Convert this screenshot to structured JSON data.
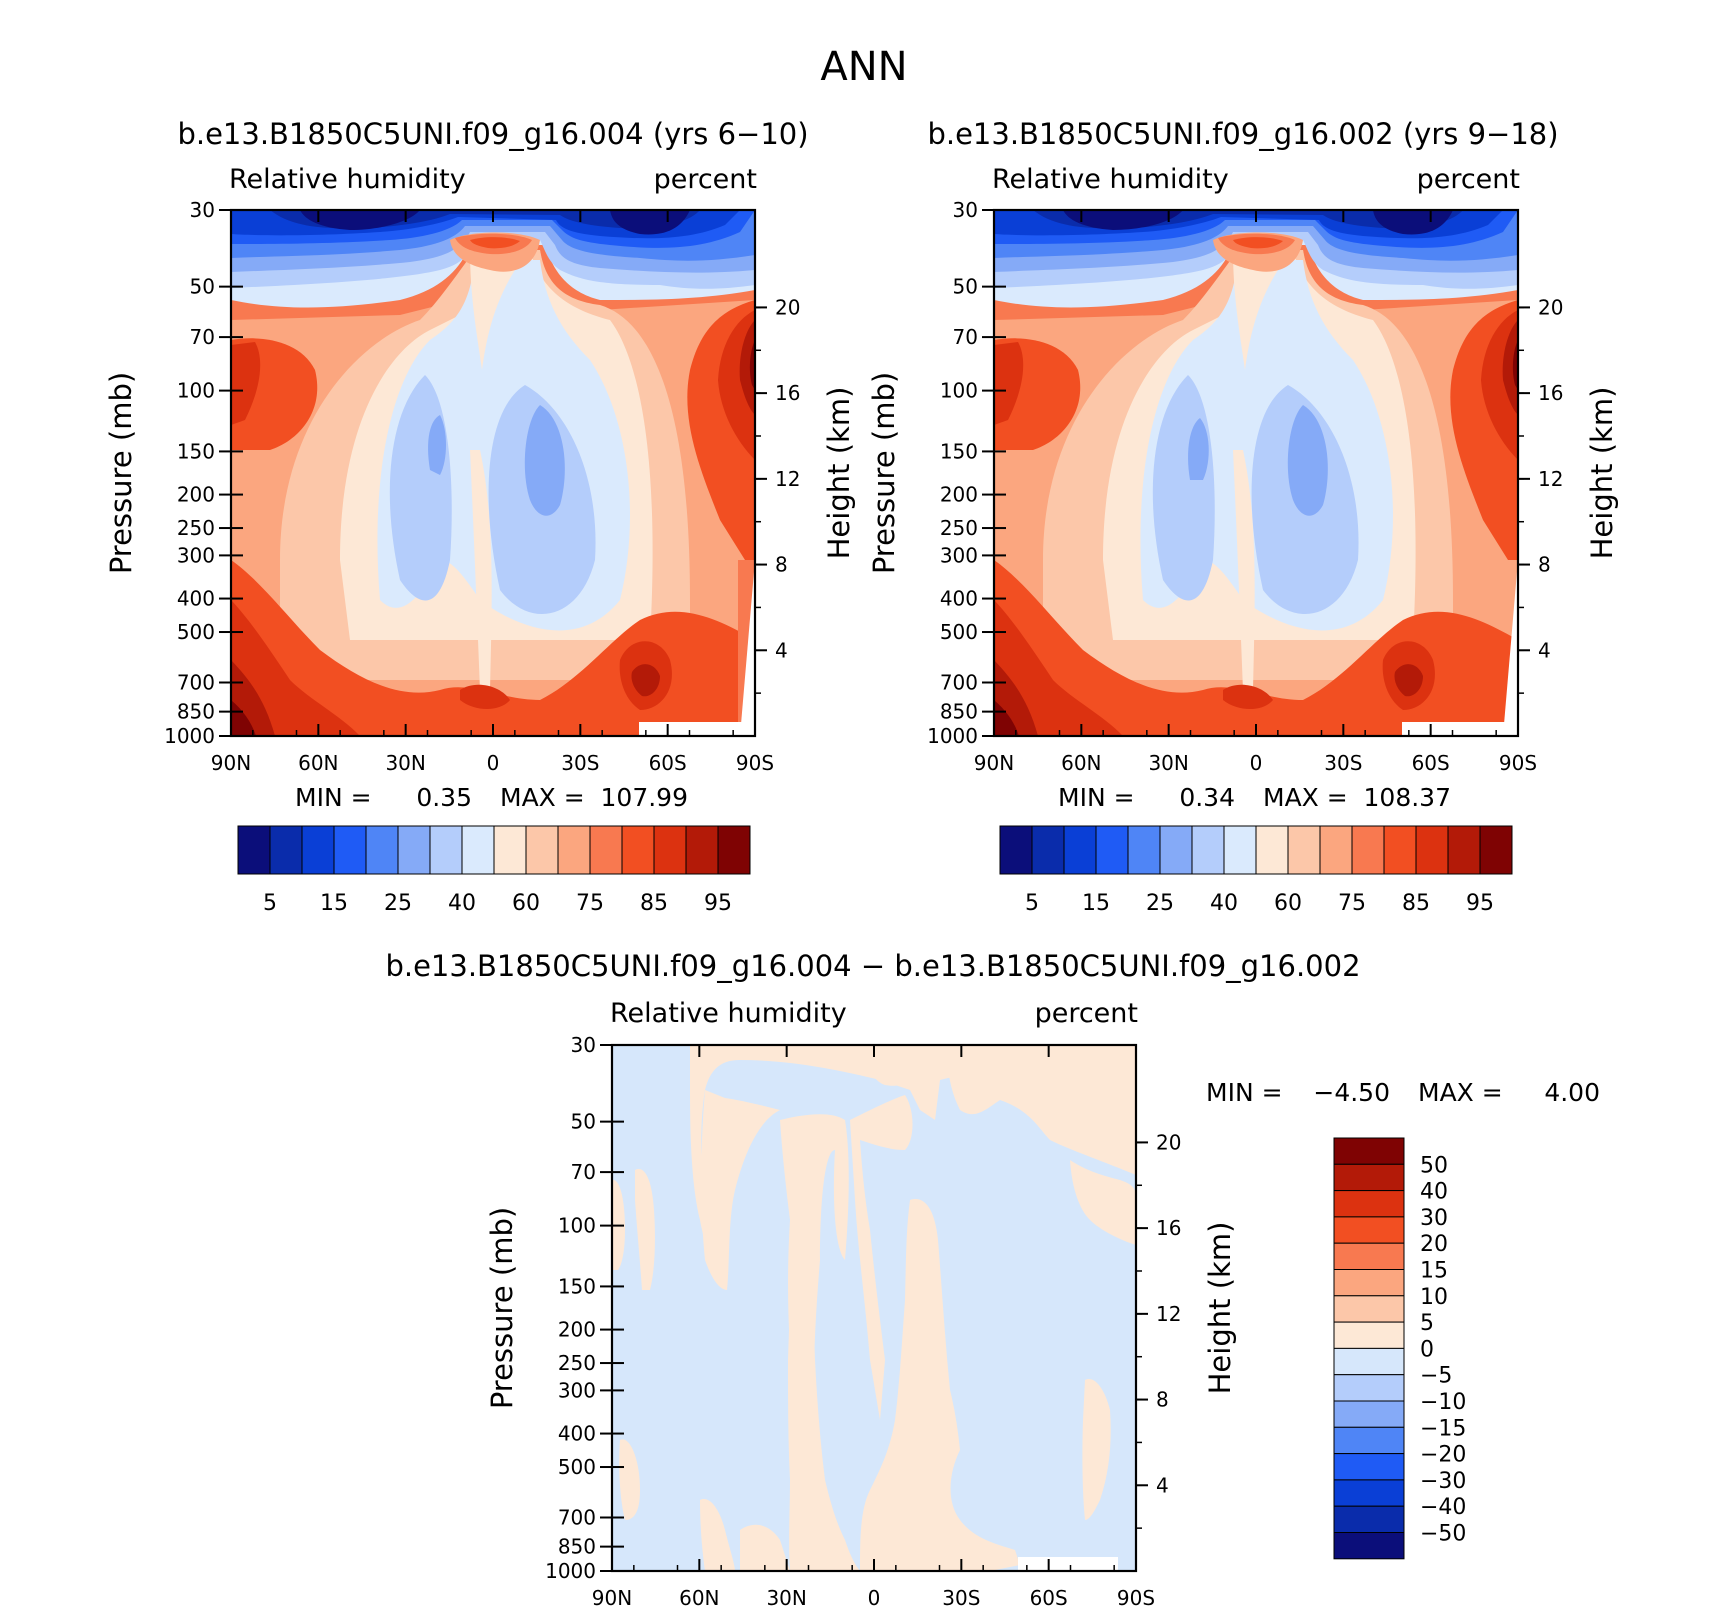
{
  "page": {
    "title": "ANN"
  },
  "chart_data": [
    {
      "type": "contour",
      "id": "p1",
      "title": "b.e13.B1850C5UNI.f09_g16.004 (yrs 6−10)",
      "left_label": "Relative humidity",
      "right_label": "percent",
      "ylabel": "Pressure (mb)",
      "ylabel_right": "Height (km)",
      "x_ticks": [
        "90N",
        "60N",
        "30N",
        "0",
        "30S",
        "60S",
        "90S"
      ],
      "y_ticks": [
        "30",
        "50",
        "70",
        "100",
        "150",
        "200",
        "250",
        "300",
        "400",
        "500",
        "700",
        "850",
        "1000"
      ],
      "height_ticks": [
        "20",
        "16",
        "12",
        "8",
        "4"
      ],
      "min_label": "MIN =",
      "min_value": "0.35",
      "max_label": "MAX =",
      "max_value": "107.99",
      "levels": [
        "5",
        "15",
        "25",
        "40",
        "60",
        "75",
        "85",
        "95"
      ]
    },
    {
      "type": "contour",
      "id": "p2",
      "title": "b.e13.B1850C5UNI.f09_g16.002 (yrs 9−18)",
      "left_label": "Relative humidity",
      "right_label": "percent",
      "ylabel": "Pressure (mb)",
      "ylabel_right": "Height (km)",
      "x_ticks": [
        "90N",
        "60N",
        "30N",
        "0",
        "30S",
        "60S",
        "90S"
      ],
      "y_ticks": [
        "30",
        "50",
        "70",
        "100",
        "150",
        "200",
        "250",
        "300",
        "400",
        "500",
        "700",
        "850",
        "1000"
      ],
      "height_ticks": [
        "20",
        "16",
        "12",
        "8",
        "4"
      ],
      "min_label": "MIN =",
      "min_value": "0.34",
      "max_label": "MAX =",
      "max_value": "108.37",
      "levels": [
        "5",
        "15",
        "25",
        "40",
        "60",
        "75",
        "85",
        "95"
      ]
    },
    {
      "type": "contour",
      "id": "p3",
      "title": "b.e13.B1850C5UNI.f09_g16.004 − b.e13.B1850C5UNI.f09_g16.002",
      "left_label": "Relative humidity",
      "right_label": "percent",
      "ylabel": "Pressure (mb)",
      "ylabel_right": "Height (km)",
      "x_ticks": [
        "90N",
        "60N",
        "30N",
        "0",
        "30S",
        "60S",
        "90S"
      ],
      "y_ticks": [
        "30",
        "50",
        "70",
        "100",
        "150",
        "200",
        "250",
        "300",
        "400",
        "500",
        "700",
        "850",
        "1000"
      ],
      "height_ticks": [
        "20",
        "16",
        "12",
        "8",
        "4"
      ],
      "min_label": "MIN =",
      "min_value": "−4.50",
      "max_label": "MAX =",
      "max_value": "4.00",
      "levels": [
        "50",
        "40",
        "30",
        "20",
        "15",
        "10",
        "5",
        "0",
        "−5",
        "−10",
        "−15",
        "−20",
        "−30",
        "−40",
        "−50"
      ]
    }
  ],
  "colors": {
    "palette16": [
      "#0b0e7a",
      "#0a2cab",
      "#0a3fd6",
      "#1f5bf5",
      "#4f85f6",
      "#85aaf7",
      "#b4cdfb",
      "#daeafd",
      "#fde8d6",
      "#fcc7a9",
      "#fba67f",
      "#f87950",
      "#f24f22",
      "#dc3210",
      "#b31a08",
      "#7f0303"
    ],
    "diff_blue": "#d6e7fb",
    "diff_tan": "#fde8d6",
    "blank": "#ffffff"
  }
}
